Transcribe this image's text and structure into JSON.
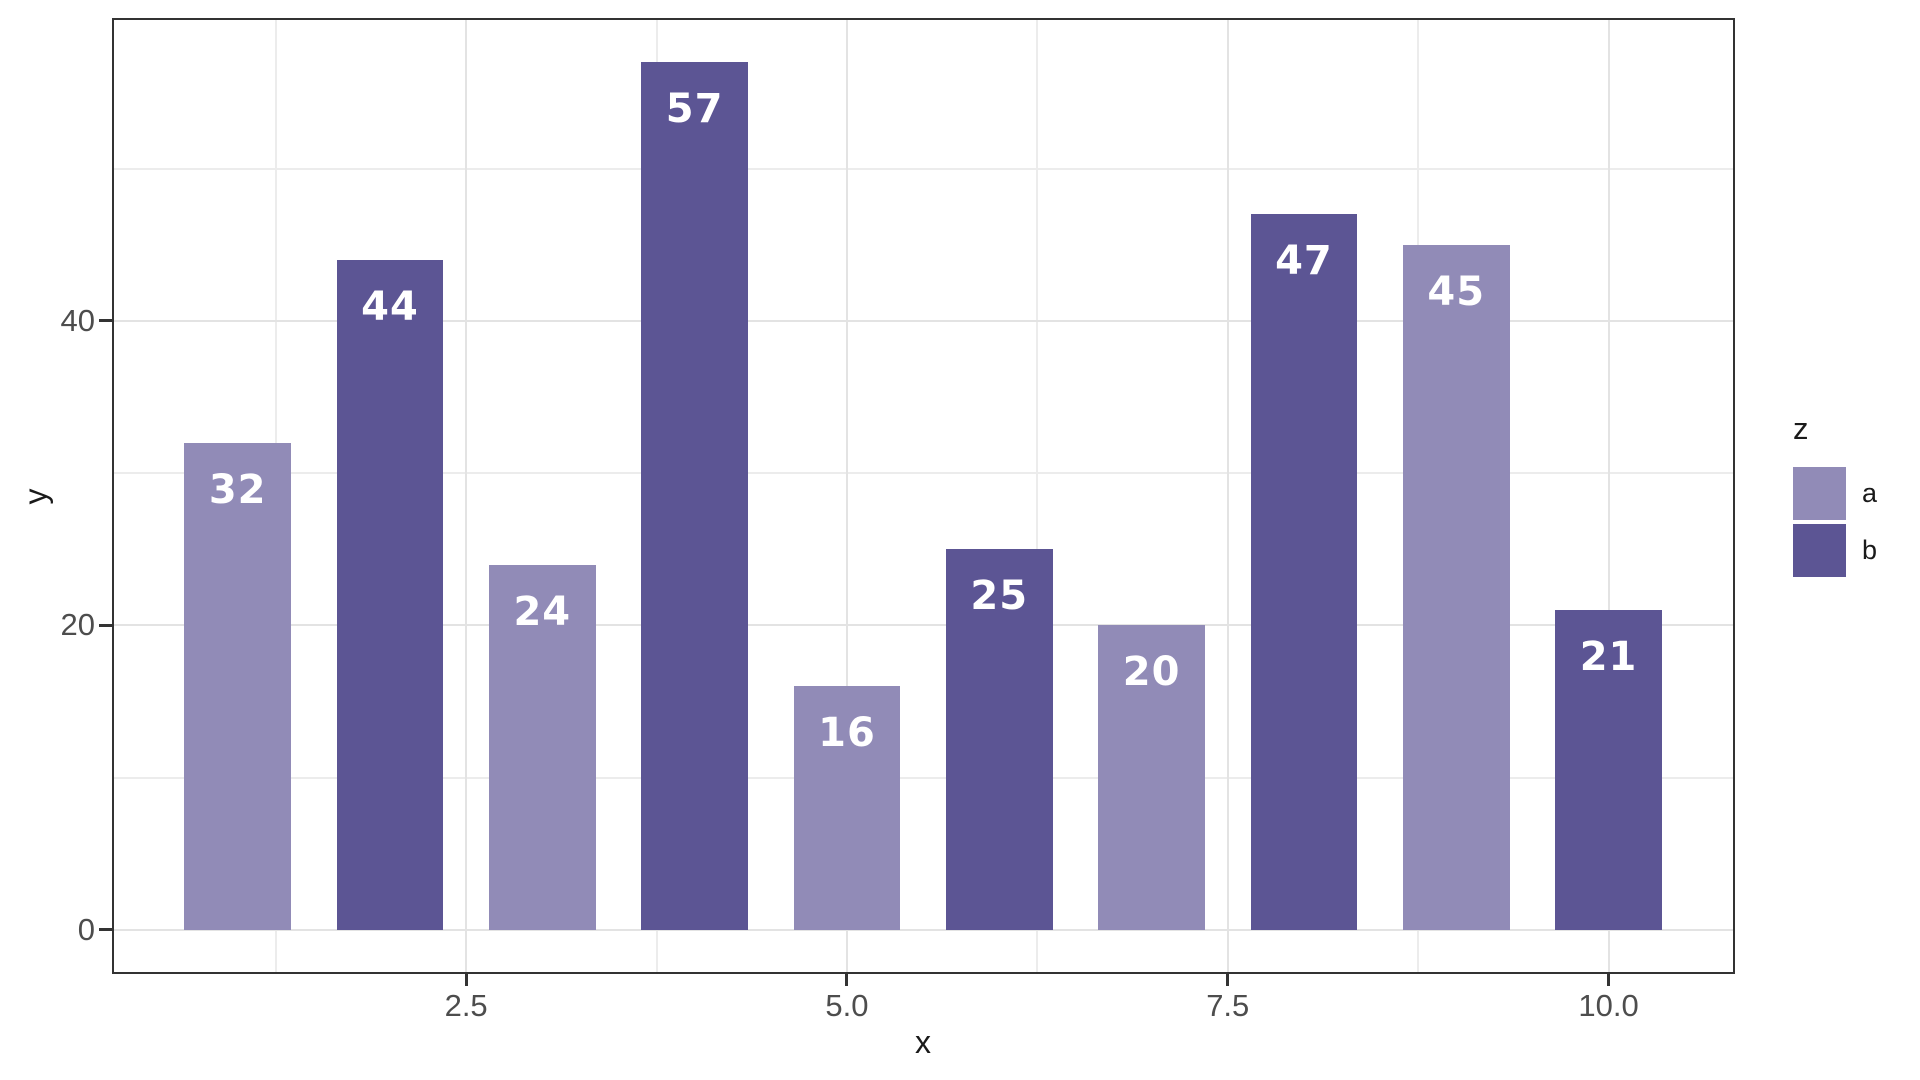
{
  "figure": {
    "background": "#ffffff"
  },
  "chart_data": {
    "type": "bar",
    "title": "",
    "xlabel": "x",
    "ylabel": "y",
    "legend_title": "z",
    "legend_position": "right",
    "grid": true,
    "x": [
      1,
      2,
      3,
      4,
      5,
      6,
      7,
      8,
      9,
      10
    ],
    "values": [
      32,
      44,
      24,
      57,
      16,
      25,
      20,
      47,
      45,
      21
    ],
    "groups": [
      "a",
      "b",
      "a",
      "b",
      "a",
      "b",
      "a",
      "b",
      "a",
      "b"
    ],
    "bar_labels": [
      "32",
      "44",
      "24",
      "57",
      "16",
      "25",
      "20",
      "47",
      "45",
      "21"
    ],
    "bar_width": 0.7,
    "colors": {
      "a": "#918BB7",
      "b": "#5C5594"
    },
    "legend": [
      {
        "label": "a",
        "color": "#918BB7"
      },
      {
        "label": "b",
        "color": "#5C5594"
      }
    ],
    "xlim": [
      0.175,
      10.83
    ],
    "ylim": [
      -2.9,
      59.9
    ],
    "x_ticks": [
      2.5,
      5.0,
      7.5,
      10.0
    ],
    "x_tick_labels": [
      "2.5",
      "5.0",
      "7.5",
      "10.0"
    ],
    "y_ticks": [
      0,
      20,
      40
    ],
    "y_tick_labels": [
      "0",
      "20",
      "40"
    ],
    "x_minor_ticks": [
      1.25,
      3.75,
      6.25,
      8.75
    ],
    "y_minor_ticks": [
      10,
      30,
      50
    ],
    "value_label_color": "#ffffff",
    "grid_major_color": "#e3e3e3",
    "grid_minor_color": "#ececec",
    "panel_border_color": "#333333",
    "tick_color": "#333333",
    "tick_label_color": "#4d4d4d",
    "axis_title_color": "#1a1a1a"
  }
}
